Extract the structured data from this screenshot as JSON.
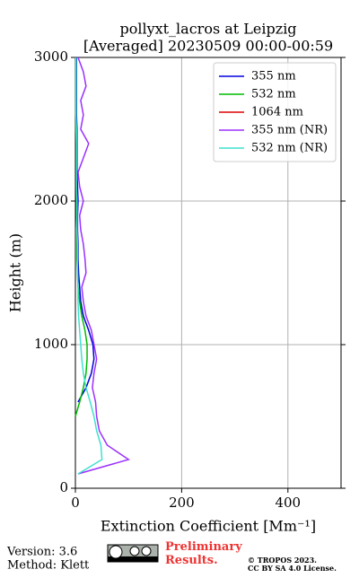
{
  "chart_data": {
    "type": "line",
    "title": "pollyxt_lacros at Leipzig",
    "subtitle": "[Averaged] 20230509 00:00-00:59",
    "x_label": "Extinction Coefficient [Mm⁻¹]",
    "y_label": "Height (m)",
    "xlim": [
      0,
      500
    ],
    "xticks": [
      0,
      200,
      400
    ],
    "ylim": [
      0,
      3000
    ],
    "yticks": [
      0,
      1000,
      2000,
      3000
    ],
    "grid": true,
    "legend": "upper right",
    "y": [
      100,
      200,
      300,
      400,
      500,
      600,
      700,
      800,
      900,
      1000,
      1100,
      1200,
      1300,
      1400,
      1500,
      1600,
      1700,
      1800,
      1900,
      2000,
      2100,
      2200,
      2300,
      2400,
      2500,
      2600,
      2700,
      2800,
      2900,
      3000
    ],
    "series": [
      {
        "name": "355 nm",
        "color": "#0000dd",
        "values": [
          null,
          null,
          null,
          null,
          null,
          5,
          20,
          30,
          35,
          33,
          25,
          15,
          10,
          8,
          6,
          5,
          5,
          4,
          4,
          5,
          4,
          3,
          3,
          3,
          3,
          2,
          2,
          2,
          2,
          2
        ]
      },
      {
        "name": "532 nm",
        "color": "#00bb00",
        "values": [
          null,
          null,
          null,
          null,
          0,
          8,
          15,
          20,
          22,
          22,
          18,
          12,
          8,
          5,
          4,
          3,
          3,
          3,
          2,
          2,
          2,
          2,
          2,
          2,
          1,
          1,
          1,
          1,
          1,
          1
        ]
      },
      {
        "name": "1064 nm",
        "color": "#dd0000",
        "values": [
          null,
          null,
          null,
          null,
          null,
          null,
          null,
          null,
          null,
          null,
          null,
          null,
          null,
          null,
          null,
          null,
          null,
          null,
          null,
          null,
          null,
          null,
          null,
          null,
          null,
          null,
          null,
          null,
          null,
          null
        ]
      },
      {
        "name": "355 nm (NR)",
        "color": "#9b30ff",
        "values": [
          5,
          100,
          60,
          45,
          40,
          38,
          32,
          35,
          40,
          35,
          30,
          20,
          15,
          12,
          20,
          18,
          15,
          10,
          8,
          15,
          8,
          5,
          15,
          25,
          10,
          15,
          10,
          20,
          15,
          5
        ]
      },
      {
        "name": "532 nm (NR)",
        "color": "#40e0d0",
        "values": [
          5,
          50,
          48,
          40,
          35,
          28,
          20,
          15,
          12,
          10,
          8,
          6,
          5,
          5,
          4,
          4,
          4,
          3,
          3,
          3,
          2,
          2,
          2,
          2,
          2,
          1,
          1,
          1,
          1,
          1
        ]
      }
    ]
  },
  "footer": {
    "version": "Version: 3.6",
    "method": "Method: Klett",
    "preliminary": "Preliminary Results.",
    "copyright": "© TROPOS 2023.",
    "license": "CC BY SA 4.0 License."
  }
}
